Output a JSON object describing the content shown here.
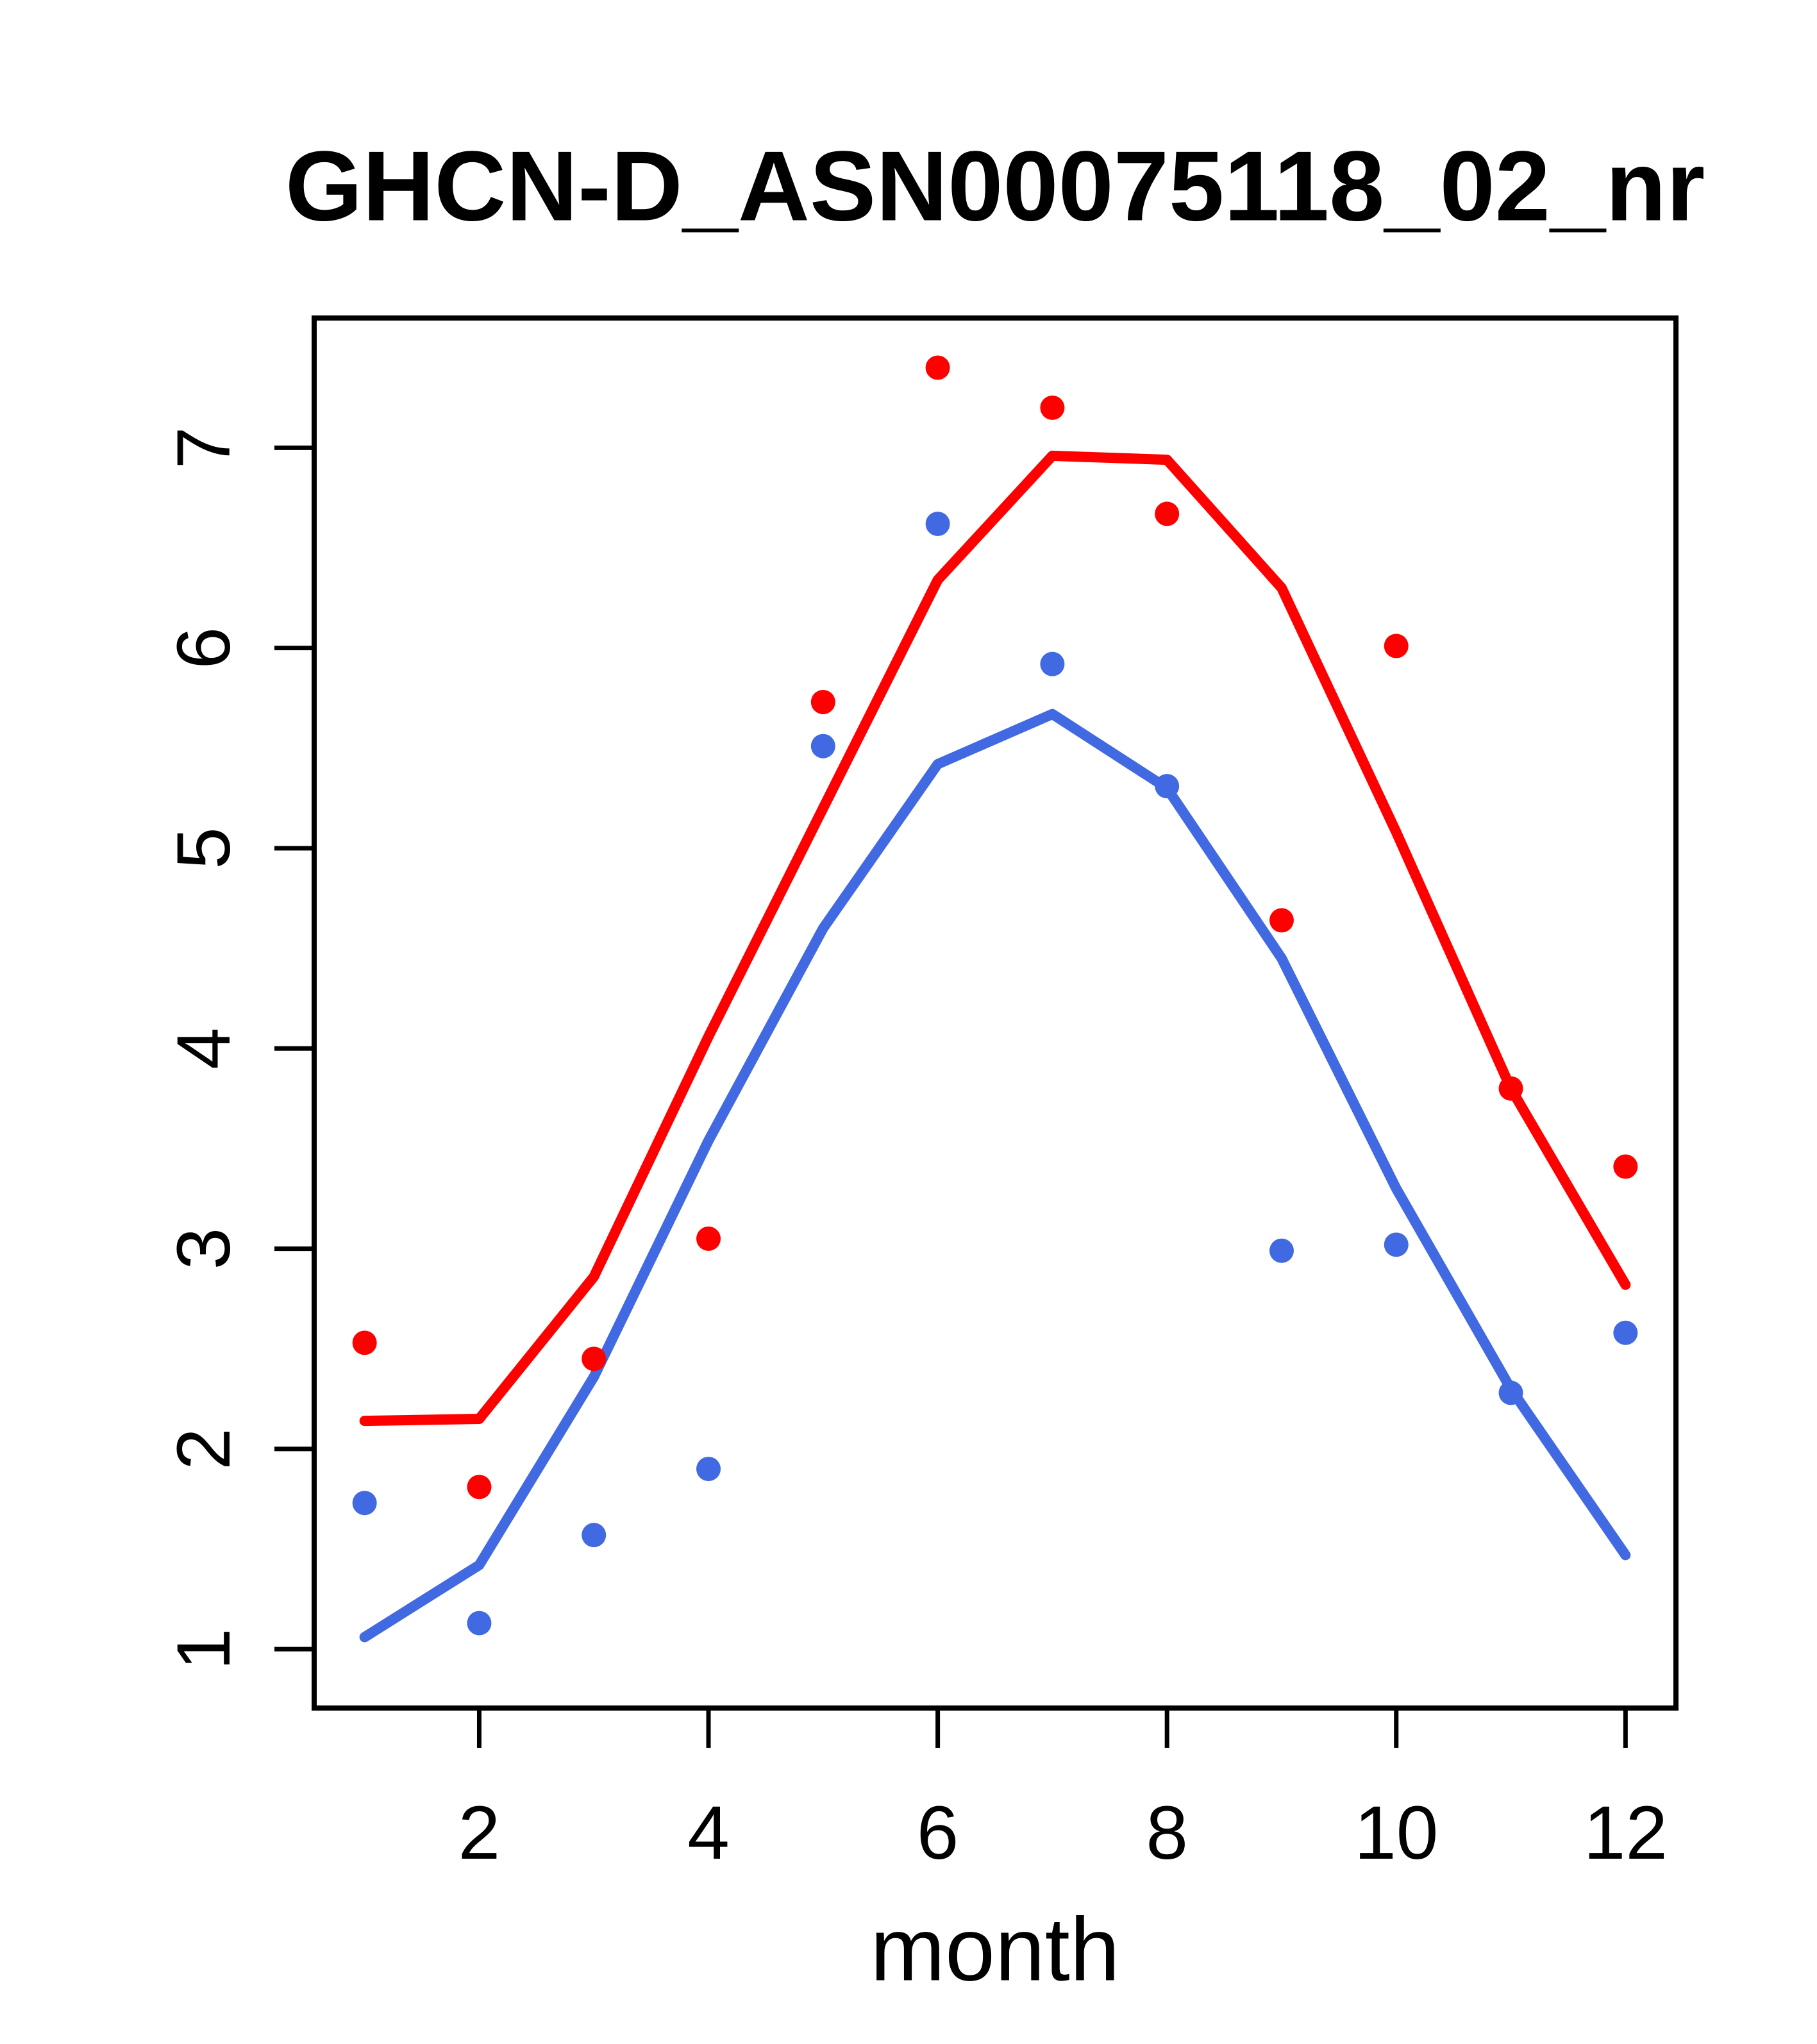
{
  "figure": {
    "background": "#ffffff"
  },
  "chart_data": {
    "type": "scatter",
    "title": "GHCN-D_ASN00075118_02_nr",
    "xlabel": "month",
    "ylabel": "",
    "x": [
      1,
      2,
      3,
      4,
      5,
      6,
      7,
      8,
      9,
      10,
      11,
      12
    ],
    "x_ticks": [
      2,
      4,
      6,
      8,
      10,
      12
    ],
    "y_ticks": [
      1,
      2,
      3,
      4,
      5,
      6,
      7
    ],
    "xlim": [
      0.56,
      12.44
    ],
    "ylim": [
      0.706,
      7.648
    ],
    "grid": false,
    "legend_position": "none",
    "axis_color": "#000000",
    "point_radius": 19,
    "line_width": 16,
    "series": [
      {
        "name": "red-points",
        "kind": "points",
        "color": "#ff0000",
        "values": [
          2.53,
          1.81,
          2.45,
          3.05,
          5.73,
          7.4,
          7.2,
          6.67,
          4.64,
          6.01,
          3.8,
          3.41
        ]
      },
      {
        "name": "blue-points",
        "kind": "points",
        "color": "#4169e1",
        "values": [
          1.73,
          1.13,
          1.57,
          1.9,
          5.51,
          6.62,
          5.92,
          5.31,
          2.99,
          3.02,
          2.28,
          2.58
        ]
      },
      {
        "name": "red-smooth-line",
        "kind": "line",
        "color": "#ff0000",
        "values": [
          2.14,
          2.15,
          2.86,
          4.06,
          5.2,
          6.34,
          6.96,
          6.94,
          6.3,
          5.08,
          3.8,
          2.82
        ]
      },
      {
        "name": "blue-smooth-line",
        "kind": "line",
        "color": "#4169e1",
        "values": [
          1.06,
          1.42,
          2.36,
          3.54,
          4.6,
          5.42,
          5.67,
          5.3,
          4.45,
          3.3,
          2.3,
          1.47
        ]
      }
    ]
  }
}
